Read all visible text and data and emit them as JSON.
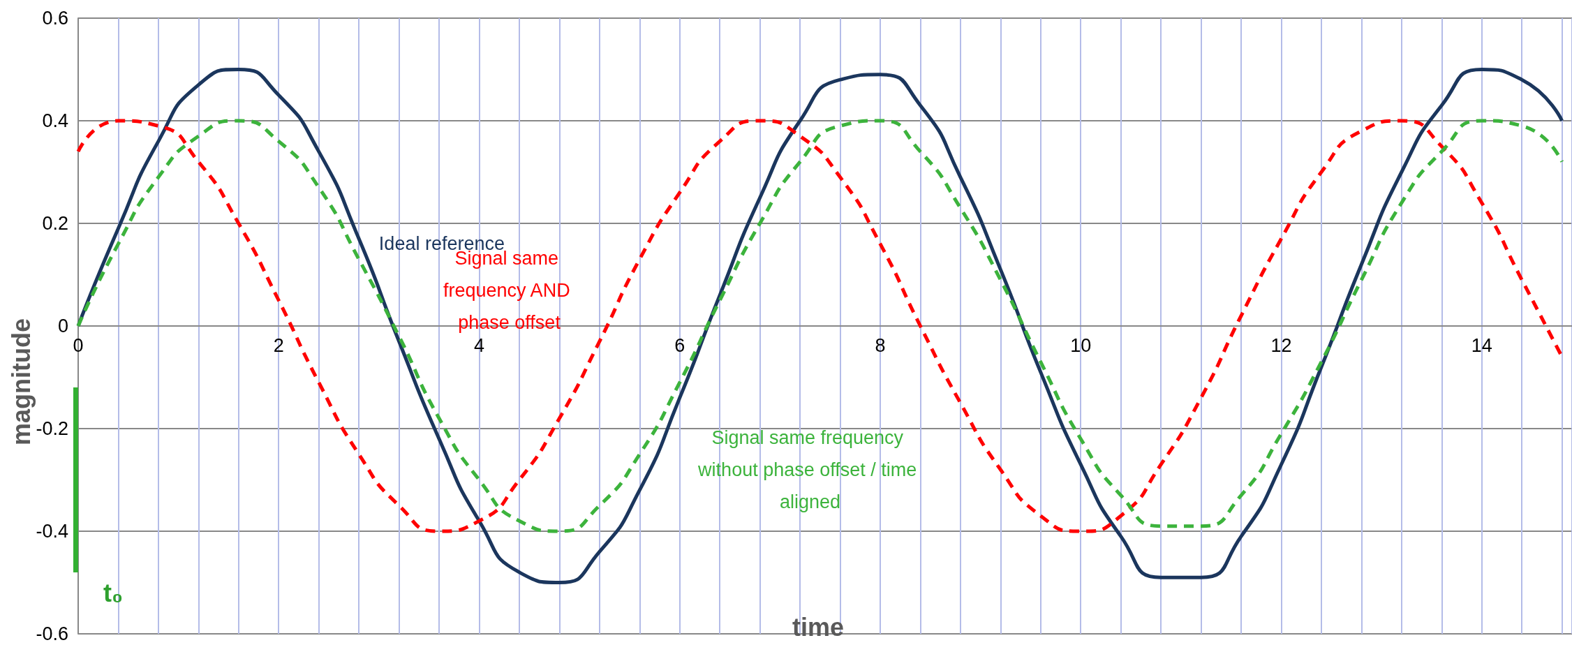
{
  "chart_data": {
    "type": "line",
    "xlabel": "time",
    "ylabel": "magnitude",
    "x": [
      0,
      0.4,
      0.8,
      1.2,
      1.6,
      2.0,
      2.4,
      2.8,
      3.2,
      3.6,
      4.0,
      4.4,
      4.8,
      5.2,
      5.6,
      6.0,
      6.4,
      6.8,
      7.2,
      7.6,
      8.0,
      8.4,
      8.8,
      9.2,
      9.6,
      10.0,
      10.4,
      10.8,
      11.2,
      11.6,
      12.0,
      12.4,
      12.8,
      13.2,
      13.6,
      14.0,
      14.4,
      14.8
    ],
    "series": [
      {
        "name": "Ideal reference",
        "color": "#1b365d",
        "line_style": "solid",
        "values": [
          0,
          0.19,
          0.36,
          0.47,
          0.5,
          0.45,
          0.34,
          0.17,
          -0.03,
          -0.22,
          -0.38,
          -0.48,
          -0.5,
          -0.44,
          -0.32,
          -0.14,
          0.06,
          0.25,
          0.4,
          0.48,
          0.49,
          0.43,
          0.29,
          0.11,
          -0.09,
          -0.27,
          -0.41,
          -0.49,
          -0.49,
          -0.41,
          -0.27,
          -0.08,
          0.12,
          0.3,
          0.43,
          0.5,
          0.48,
          0.4
        ]
      },
      {
        "name": "Signal same frequency AND phase offset",
        "color": "#ff0000",
        "line_style": "dashed",
        "values": [
          0.34,
          0.4,
          0.39,
          0.32,
          0.2,
          0.05,
          -0.11,
          -0.25,
          -0.35,
          -0.4,
          -0.38,
          -0.3,
          -0.18,
          -0.03,
          0.13,
          0.26,
          0.36,
          0.4,
          0.37,
          0.29,
          0.16,
          0.0,
          -0.15,
          -0.28,
          -0.37,
          -0.4,
          -0.37,
          -0.27,
          -0.14,
          0.02,
          0.17,
          0.3,
          0.38,
          0.4,
          0.35,
          0.24,
          0.09,
          -0.06
        ]
      },
      {
        "name": "Signal same frequency without phase offset / time aligned",
        "color": "#3cb33c",
        "line_style": "dashed",
        "values": [
          0,
          0.16,
          0.29,
          0.37,
          0.4,
          0.36,
          0.27,
          0.13,
          -0.02,
          -0.18,
          -0.3,
          -0.38,
          -0.4,
          -0.35,
          -0.25,
          -0.11,
          0.05,
          0.2,
          0.32,
          0.39,
          0.4,
          0.34,
          0.23,
          0.09,
          -0.07,
          -0.22,
          -0.33,
          -0.39,
          -0.39,
          -0.33,
          -0.21,
          -0.07,
          0.09,
          0.24,
          0.34,
          0.4,
          0.39,
          0.32
        ]
      }
    ],
    "annotations": [
      "t₀"
    ],
    "xlim": [
      0,
      14.9
    ],
    "xticks": [
      0,
      2,
      4,
      6,
      8,
      10,
      12,
      14
    ],
    "ylim": [
      -0.6,
      0.6
    ],
    "yticks": [
      -0.6,
      -0.4,
      -0.2,
      0,
      0.2,
      0.4,
      0.6
    ],
    "grid": true,
    "legend": false,
    "marker": "none"
  }
}
